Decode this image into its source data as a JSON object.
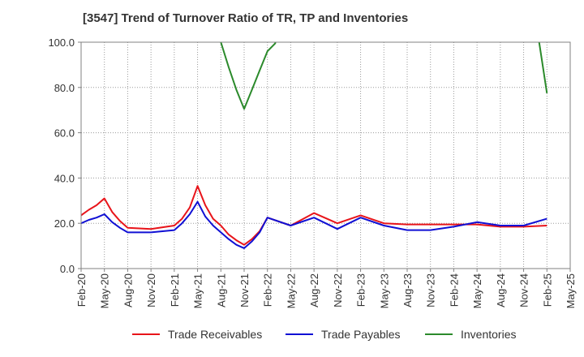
{
  "title": "[3547]  Trend of Turnover Ratio of TR, TP and Inventories",
  "chart_data": {
    "type": "line",
    "title": "[3547]  Trend of Turnover Ratio of TR, TP and Inventories",
    "xlabel": "",
    "ylabel": "",
    "x_ticks": [
      "Feb-20",
      "May-20",
      "Aug-20",
      "Nov-20",
      "Feb-21",
      "May-21",
      "Aug-21",
      "Nov-21",
      "Feb-22",
      "May-22",
      "Aug-22",
      "Nov-22",
      "Feb-23",
      "May-23",
      "Aug-23",
      "Nov-23",
      "Feb-24",
      "May-24",
      "Aug-24",
      "Nov-24",
      "Feb-25",
      "May-25"
    ],
    "y_ticks": [
      "0.0",
      "20.0",
      "40.0",
      "60.0",
      "80.0",
      "100.0"
    ],
    "ylim": [
      0,
      100
    ],
    "grid": true,
    "legend_position": "bottom",
    "series": [
      {
        "name": "Trade Receivables",
        "color": "#e8141a",
        "points": [
          [
            "Feb-20",
            23.5
          ],
          [
            "Mar-20",
            26
          ],
          [
            "Apr-20",
            28
          ],
          [
            "May-20",
            31
          ],
          [
            "Jun-20",
            25
          ],
          [
            "Jul-20",
            21
          ],
          [
            "Aug-20",
            18
          ],
          [
            "Nov-20",
            17.5
          ],
          [
            "Feb-21",
            19
          ],
          [
            "Mar-21",
            22
          ],
          [
            "Apr-21",
            27
          ],
          [
            "May-21",
            36.5
          ],
          [
            "Jun-21",
            28
          ],
          [
            "Jul-21",
            22
          ],
          [
            "Aug-21",
            19
          ],
          [
            "Sep-21",
            15
          ],
          [
            "Oct-21",
            12.5
          ],
          [
            "Nov-21",
            10.5
          ],
          [
            "Dec-21",
            13
          ],
          [
            "Jan-22",
            16.5
          ],
          [
            "Feb-22",
            22.5
          ],
          [
            "May-22",
            19
          ],
          [
            "Aug-22",
            24.5
          ],
          [
            "Nov-22",
            20
          ],
          [
            "Feb-23",
            23.5
          ],
          [
            "May-23",
            20
          ],
          [
            "Aug-23",
            19.5
          ],
          [
            "Nov-23",
            19.5
          ],
          [
            "Feb-24",
            19.5
          ],
          [
            "May-24",
            19.5
          ],
          [
            "Aug-24",
            18.5
          ],
          [
            "Nov-24",
            18.5
          ],
          [
            "Feb-25",
            19
          ]
        ]
      },
      {
        "name": "Trade Payables",
        "color": "#1010d4",
        "points": [
          [
            "Feb-20",
            20
          ],
          [
            "Mar-20",
            21.5
          ],
          [
            "Apr-20",
            22.5
          ],
          [
            "May-20",
            24
          ],
          [
            "Jun-20",
            20.5
          ],
          [
            "Jul-20",
            18
          ],
          [
            "Aug-20",
            16
          ],
          [
            "Nov-20",
            16
          ],
          [
            "Feb-21",
            17
          ],
          [
            "Mar-21",
            20
          ],
          [
            "Apr-21",
            24
          ],
          [
            "May-21",
            29.5
          ],
          [
            "Jun-21",
            23
          ],
          [
            "Jul-21",
            19
          ],
          [
            "Aug-21",
            16
          ],
          [
            "Sep-21",
            13
          ],
          [
            "Oct-21",
            10.5
          ],
          [
            "Nov-21",
            9
          ],
          [
            "Dec-21",
            12
          ],
          [
            "Jan-22",
            16
          ],
          [
            "Feb-22",
            22.5
          ],
          [
            "May-22",
            19
          ],
          [
            "Aug-22",
            22.5
          ],
          [
            "Nov-22",
            17.5
          ],
          [
            "Feb-23",
            22.5
          ],
          [
            "May-23",
            19
          ],
          [
            "Aug-23",
            17
          ],
          [
            "Nov-23",
            17
          ],
          [
            "Feb-24",
            18.5
          ],
          [
            "May-24",
            20.5
          ],
          [
            "Aug-24",
            19
          ],
          [
            "Nov-24",
            19
          ],
          [
            "Feb-25",
            22
          ]
        ]
      },
      {
        "name": "Inventories",
        "color": "#2b8a2b",
        "segments": [
          [
            [
              "Jul-21",
              118
            ],
            [
              "Aug-21",
              100
            ],
            [
              "Sep-21",
              89
            ],
            [
              "Oct-21",
              79
            ],
            [
              "Nov-21",
              70.5
            ],
            [
              "Dec-21",
              79
            ],
            [
              "Jan-22",
              87.5
            ],
            [
              "Feb-22",
              96
            ],
            [
              "Mar-22",
              99.5
            ],
            [
              "Apr-22",
              118
            ]
          ],
          [
            [
              "Dec-24",
              116
            ],
            [
              "Jan-25",
              100
            ],
            [
              "Feb-25",
              77.5
            ]
          ]
        ]
      }
    ]
  }
}
